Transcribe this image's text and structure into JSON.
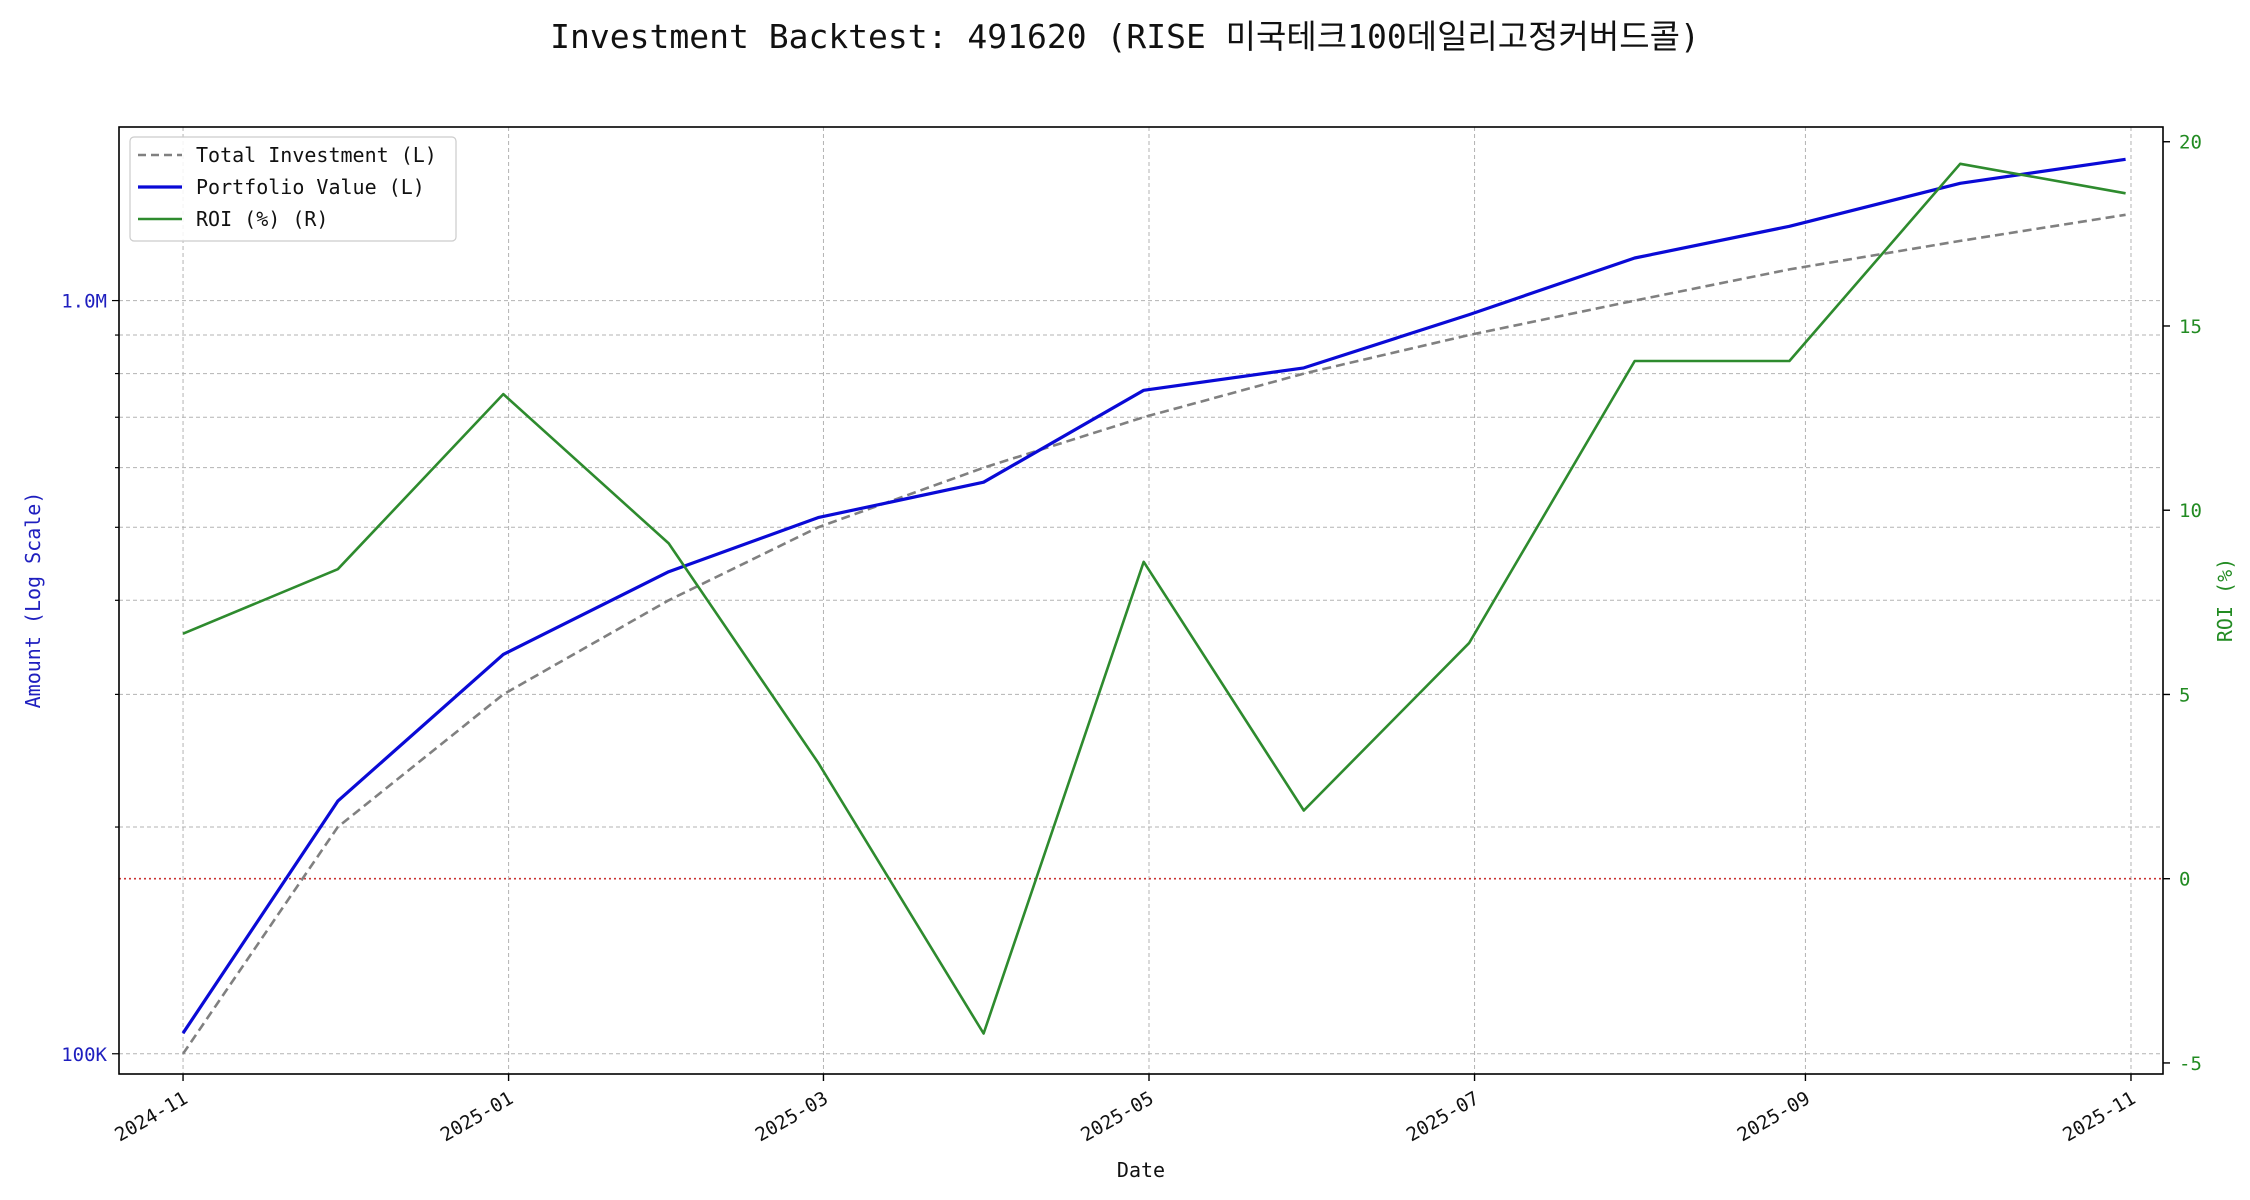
{
  "chart_data": {
    "type": "line",
    "title": "Investment Backtest: 491620 (RISE 미국테크100데일리고정커버드콜)",
    "xlabel": "Date",
    "ylabel_left": "Amount (Log Scale)",
    "ylabel_right": "ROI (%)",
    "left_axis": {
      "scale": "log",
      "ylim": [
        94000,
        1700000
      ],
      "ticks": [
        100000,
        1000000
      ],
      "tick_labels": [
        "100K",
        "1.0M"
      ],
      "color": "#1f1fbf"
    },
    "right_axis": {
      "scale": "linear",
      "ylim": [
        -5.3,
        20.4
      ],
      "ticks": [
        -5,
        0,
        5,
        10,
        15,
        20
      ],
      "tick_labels": [
        "-5",
        "0",
        "5",
        "10",
        "15",
        "20"
      ],
      "color": "#228b22"
    },
    "xlim": [
      "2024-10-20",
      "2025-11-07"
    ],
    "x_ticks": [
      "2024-11-01",
      "2025-01-01",
      "2025-03-01",
      "2025-05-01",
      "2025-07-01",
      "2025-09-01",
      "2025-11-01"
    ],
    "x_tick_labels": [
      "2024-11",
      "2025-01",
      "2025-03",
      "2025-05",
      "2025-07",
      "2025-09",
      "2025-11"
    ],
    "x": [
      "2024-11-01",
      "2024-11-30",
      "2024-12-31",
      "2025-01-31",
      "2025-02-28",
      "2025-03-31",
      "2025-04-30",
      "2025-05-30",
      "2025-06-30",
      "2025-07-31",
      "2025-08-29",
      "2025-09-30",
      "2025-10-31"
    ],
    "grid": true,
    "legend_position": "top-left",
    "zero_line": {
      "value": 0,
      "axis": "right",
      "color": "#cc3333",
      "style": "dotted"
    },
    "series": [
      {
        "name": "Total Investment (L)",
        "axis": "left",
        "color": "#808080",
        "style": "dashed",
        "values": [
          100000,
          200000,
          300000,
          400000,
          500000,
          600000,
          700000,
          800000,
          900000,
          1000000,
          1100000,
          1200000,
          1300000
        ]
      },
      {
        "name": "Portfolio Value (L)",
        "axis": "left",
        "color": "#0a0ad6",
        "style": "solid",
        "values": [
          106500,
          216500,
          339000,
          436500,
          515000,
          574000,
          760000,
          814000,
          958000,
          1139000,
          1255000,
          1431000,
          1540000
        ]
      },
      {
        "name": "ROI (%) (R)",
        "axis": "right",
        "color": "#2e8b2e",
        "style": "solid",
        "values": [
          6.65,
          8.4,
          13.15,
          9.1,
          3.15,
          -4.2,
          8.6,
          1.85,
          6.4,
          14.05,
          14.05,
          19.4,
          18.6
        ]
      }
    ]
  }
}
